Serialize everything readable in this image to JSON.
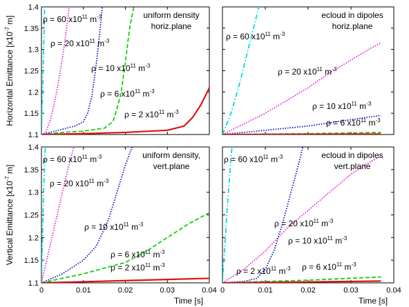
{
  "chart_data": [
    {
      "type": "line",
      "title_lines": [
        "uniform density",
        "horiz.plane"
      ],
      "ylabel_parts": [
        "Horizontal Emittance [x10",
        "-7",
        " m]"
      ],
      "xlim": [
        0,
        0.04
      ],
      "ylim": [
        1.1,
        1.4
      ],
      "xticks": [
        0,
        0.01,
        0.02,
        0.03,
        0.04
      ],
      "yticks": [
        1.1,
        1.15,
        1.2,
        1.25,
        1.3,
        1.35,
        1.4
      ],
      "show_xtick_labels": false,
      "show_ytick_labels": true,
      "series": [
        {
          "label_parts": [
            "ρ = 60 x10",
            "11",
            " m",
            "-3"
          ],
          "color": "#00d8e8",
          "linestyle": "dashdot",
          "x": [
            0,
            0.0004,
            0.0008
          ],
          "values": [
            1.1,
            1.25,
            1.42
          ]
        },
        {
          "label_parts": [
            "ρ = 20 x10",
            "11",
            " m",
            "-3"
          ],
          "color": "#e020d0",
          "linestyle": "dotted",
          "x": [
            0,
            0.001,
            0.002,
            0.003,
            0.004,
            0.005,
            0.006,
            0.0066
          ],
          "values": [
            1.1,
            1.105,
            1.13,
            1.17,
            1.22,
            1.28,
            1.35,
            1.4
          ]
        },
        {
          "label_parts": [
            "ρ = 10 x10",
            "11",
            " m",
            "-3"
          ],
          "color": "#0010c8",
          "linestyle": "dotted",
          "x": [
            0,
            0.002,
            0.004,
            0.006,
            0.008,
            0.01,
            0.011,
            0.012,
            0.013,
            0.014,
            0.0145
          ],
          "values": [
            1.1,
            1.105,
            1.11,
            1.115,
            1.12,
            1.13,
            1.15,
            1.19,
            1.26,
            1.35,
            1.4
          ]
        },
        {
          "label_parts": [
            "ρ = 6 x10",
            "11",
            " m",
            "-3"
          ],
          "color": "#10d010",
          "linestyle": "dashed",
          "x": [
            0,
            0.005,
            0.01,
            0.015,
            0.017,
            0.018,
            0.019,
            0.02,
            0.021,
            0.022
          ],
          "values": [
            1.1,
            1.105,
            1.108,
            1.115,
            1.13,
            1.16,
            1.2,
            1.27,
            1.35,
            1.4
          ]
        },
        {
          "label_parts": [
            "ρ = 2 x10",
            "11",
            " m",
            "-3"
          ],
          "color": "#e01010",
          "linestyle": "solid",
          "x": [
            0,
            0.01,
            0.02,
            0.03,
            0.034,
            0.036,
            0.038,
            0.04
          ],
          "values": [
            1.1,
            1.102,
            1.105,
            1.11,
            1.12,
            1.14,
            1.17,
            1.21
          ]
        }
      ]
    },
    {
      "type": "line",
      "title_lines": [
        "ecloud in dipoles",
        "horiz.plane"
      ],
      "xlim": [
        0,
        0.04
      ],
      "ylim": [
        1.1,
        1.4
      ],
      "xticks": [
        0,
        0.01,
        0.02,
        0.03,
        0.04
      ],
      "yticks": [
        1.1,
        1.15,
        1.2,
        1.25,
        1.3,
        1.35,
        1.4
      ],
      "show_xtick_labels": false,
      "show_ytick_labels": false,
      "series": [
        {
          "label_parts": [
            "ρ = 60 x10",
            "11",
            " m",
            "-3"
          ],
          "color": "#00d8e8",
          "linestyle": "dashdot",
          "x": [
            0,
            0.002,
            0.004,
            0.006,
            0.008,
            0.0085
          ],
          "values": [
            1.1,
            1.15,
            1.22,
            1.3,
            1.38,
            1.4
          ]
        },
        {
          "label_parts": [
            "ρ = 20 x10",
            "11",
            " m",
            "-3"
          ],
          "color": "#e020d0",
          "linestyle": "dotted",
          "x": [
            0,
            0.005,
            0.01,
            0.015,
            0.02,
            0.025,
            0.03,
            0.035,
            0.037
          ],
          "values": [
            1.1,
            1.125,
            1.15,
            1.18,
            1.21,
            1.245,
            1.275,
            1.305,
            1.315
          ]
        },
        {
          "label_parts": [
            "ρ = 10 x10",
            "11",
            " m",
            "-3"
          ],
          "color": "#0010c8",
          "linestyle": "dotted",
          "x": [
            0,
            0.01,
            0.02,
            0.03,
            0.037
          ],
          "values": [
            1.1,
            1.11,
            1.12,
            1.135,
            1.145
          ]
        },
        {
          "label_parts": [
            "ρ = 6 x10",
            "11",
            " m",
            "-3"
          ],
          "color": "#10d010",
          "linestyle": "dashed",
          "x": [
            0,
            0.02,
            0.037
          ],
          "values": [
            1.1,
            1.102,
            1.105
          ]
        },
        {
          "color": "#e01010",
          "linestyle": "solid",
          "x": [
            0,
            0.037
          ],
          "values": [
            1.1,
            1.101
          ]
        }
      ]
    },
    {
      "type": "line",
      "title_lines": [
        "uniform density,",
        "vert.plane"
      ],
      "ylabel_parts": [
        "Vertical Emittance [x10",
        "-7",
        " m]"
      ],
      "xlabel": "Time [s]",
      "xlim": [
        0,
        0.04
      ],
      "ylim": [
        1.1,
        1.4
      ],
      "xticks": [
        0,
        0.01,
        0.02,
        0.03,
        0.04
      ],
      "yticks": [
        1.1,
        1.15,
        1.2,
        1.25,
        1.3,
        1.35,
        1.4
      ],
      "show_xtick_labels": true,
      "show_ytick_labels": true,
      "series": [
        {
          "label_parts": [
            "ρ = 60 x10",
            "11",
            " m",
            "-3"
          ],
          "color": "#00d8e8",
          "linestyle": "dashdot",
          "x": [
            0,
            0.0005,
            0.001
          ],
          "values": [
            1.1,
            1.3,
            1.42
          ]
        },
        {
          "label_parts": [
            "ρ = 20 x10",
            "11",
            " m",
            "-3"
          ],
          "color": "#e020d0",
          "linestyle": "dotted",
          "x": [
            0,
            0.002,
            0.004,
            0.006,
            0.008
          ],
          "values": [
            1.1,
            1.18,
            1.26,
            1.34,
            1.41
          ]
        },
        {
          "label_parts": [
            "ρ = 10 x10",
            "11",
            " m",
            "-3"
          ],
          "color": "#0010c8",
          "linestyle": "dotted",
          "x": [
            0,
            0.005,
            0.01,
            0.013,
            0.016,
            0.018,
            0.02,
            0.022
          ],
          "values": [
            1.1,
            1.12,
            1.15,
            1.18,
            1.24,
            1.3,
            1.36,
            1.41
          ]
        },
        {
          "label_parts": [
            "ρ = 6 x10",
            "11",
            " m",
            "-3"
          ],
          "color": "#10d010",
          "linestyle": "dashed",
          "x": [
            0,
            0.01,
            0.02,
            0.025,
            0.03,
            0.035,
            0.04
          ],
          "values": [
            1.1,
            1.12,
            1.145,
            1.17,
            1.2,
            1.23,
            1.255
          ]
        },
        {
          "label_parts": [
            "ρ = 2 x10",
            "11",
            " m",
            "-3"
          ],
          "color": "#e01010",
          "linestyle": "solid",
          "x": [
            0,
            0.02,
            0.04
          ],
          "values": [
            1.1,
            1.105,
            1.11
          ]
        }
      ]
    },
    {
      "type": "line",
      "title_lines": [
        "ecloud in dipoles",
        "vert.plane"
      ],
      "xlabel": "Time [s]",
      "xlim": [
        0,
        0.04
      ],
      "ylim": [
        1.1,
        1.4
      ],
      "xticks": [
        0,
        0.01,
        0.02,
        0.03,
        0.04
      ],
      "yticks": [
        1.1,
        1.15,
        1.2,
        1.25,
        1.3,
        1.35,
        1.4
      ],
      "show_xtick_labels": true,
      "show_ytick_labels": false,
      "series": [
        {
          "label_parts": [
            "ρ = 60 x10",
            "11",
            " m",
            "-3"
          ],
          "color": "#00d8e8",
          "linestyle": "dashdot",
          "x": [
            0,
            0.001,
            0.002,
            0.0025
          ],
          "values": [
            1.1,
            1.25,
            1.38,
            1.42
          ]
        },
        {
          "label_parts": [
            "ρ = 20 x10",
            "11",
            " m",
            "-3"
          ],
          "color": "#e020d0",
          "linestyle": "dotted",
          "x": [
            0,
            0.005,
            0.01,
            0.015,
            0.02,
            0.025,
            0.03,
            0.035,
            0.037
          ],
          "values": [
            1.1,
            1.13,
            1.17,
            1.22,
            1.26,
            1.3,
            1.34,
            1.37,
            1.38
          ]
        },
        {
          "label_parts": [
            "ρ = 10 x10",
            "11",
            " m",
            "-3"
          ],
          "color": "#0010c8",
          "linestyle": "dotted",
          "x": [
            0,
            0.005,
            0.008,
            0.01,
            0.012,
            0.014,
            0.016,
            0.018,
            0.019
          ],
          "values": [
            1.1,
            1.103,
            1.11,
            1.13,
            1.17,
            1.23,
            1.3,
            1.37,
            1.41
          ]
        },
        {
          "label_parts": [
            "ρ = 6 x10",
            "11",
            " m",
            "-3"
          ],
          "color": "#10d010",
          "linestyle": "dashed",
          "x": [
            0,
            0.01,
            0.02,
            0.03,
            0.037
          ],
          "values": [
            1.1,
            1.103,
            1.106,
            1.11,
            1.113
          ]
        },
        {
          "label_parts": [
            "ρ = 2 x10",
            "11",
            " m",
            "-3"
          ],
          "color": "#e01010",
          "linestyle": "solid",
          "x": [
            0,
            0.02,
            0.037
          ],
          "values": [
            1.1,
            1.102,
            1.104
          ]
        }
      ]
    }
  ]
}
